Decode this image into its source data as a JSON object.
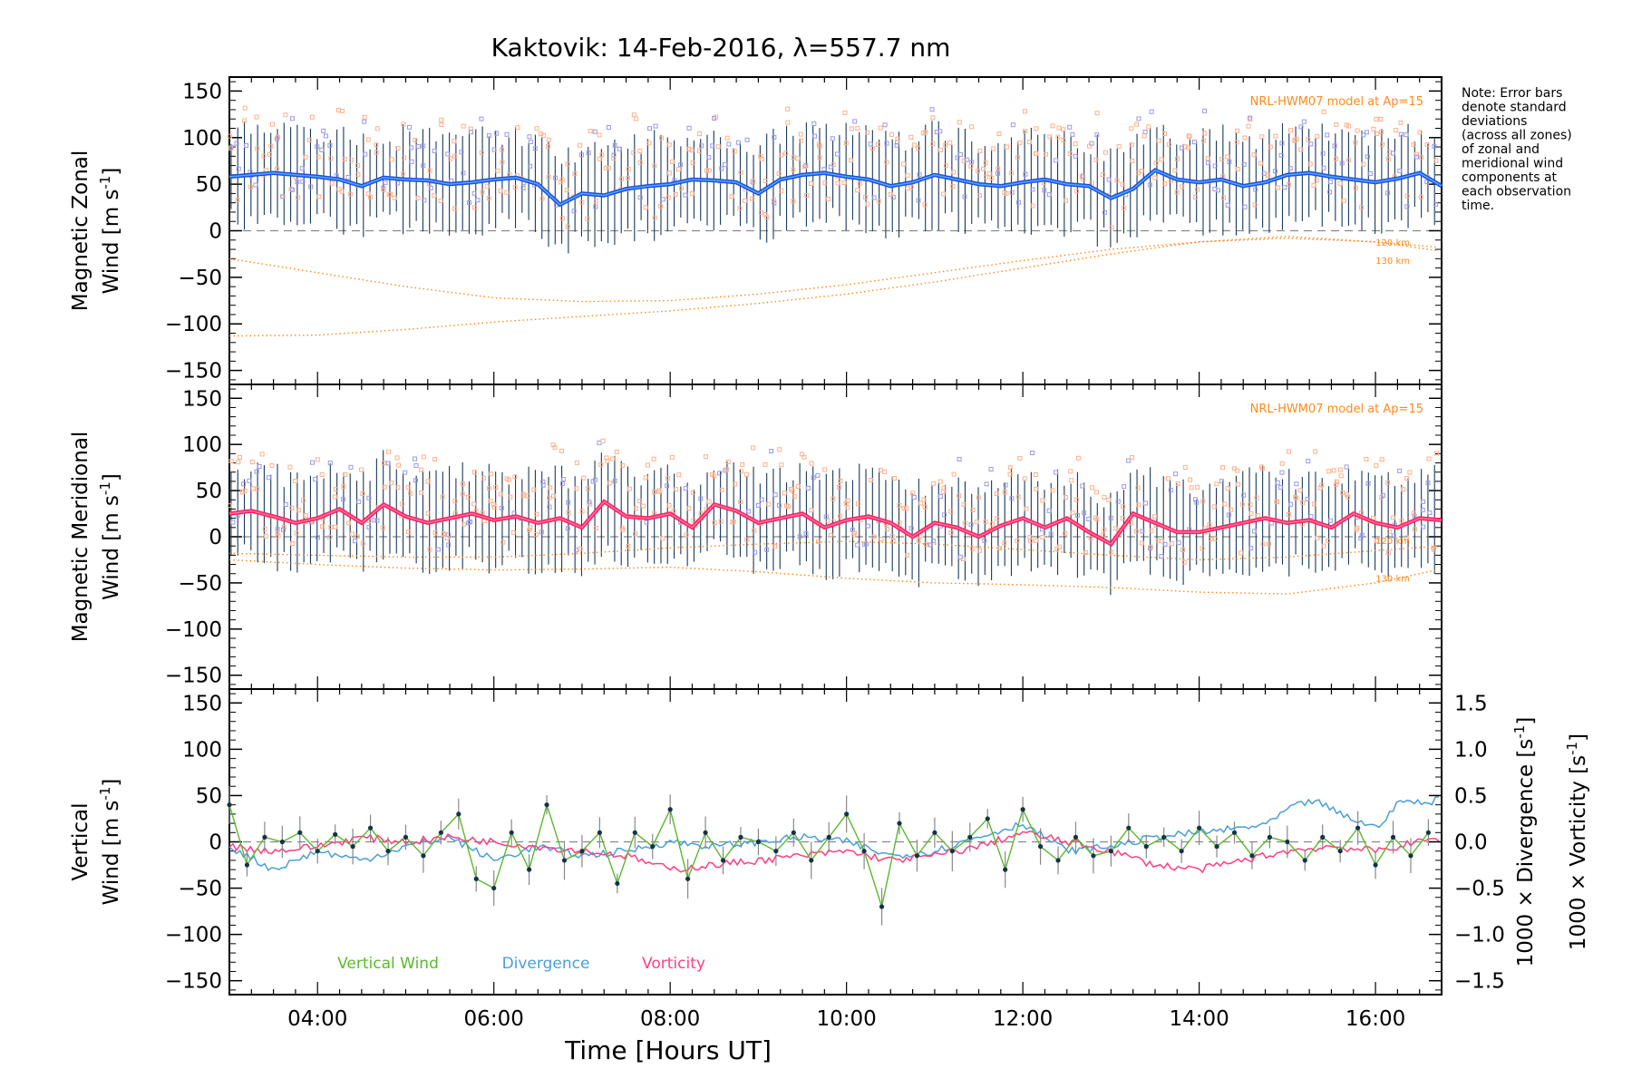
{
  "chart_data": {
    "type": "line",
    "title": "Kaktovik: 14-Feb-2016, λ=557.7 nm",
    "xlabel": "Time [Hours UT]",
    "xlim": [
      3.0,
      16.75
    ],
    "x_ticks": [
      "04:00",
      "06:00",
      "08:00",
      "10:00",
      "12:00",
      "14:00",
      "16:00"
    ],
    "x_tick_hours": [
      4,
      6,
      8,
      10,
      12,
      14,
      16
    ],
    "note": [
      "Note: Error bars",
      "denote standard",
      "deviations",
      "(across all zones)",
      "of zonal and",
      "meridional wind",
      "components at",
      "each observation",
      "time."
    ],
    "colors": {
      "zonal_mean": "#1f4fe0",
      "zonal_mean_light": "#4fa8ff",
      "meridional_mean": "#ff2060",
      "meridional_mean_light": "#ff70a0",
      "model": "#ff8a1c",
      "vertical": "#5cb82e",
      "divergence": "#4a9fd8",
      "vorticity": "#ff3f7f",
      "scatter_orange": "#ffb08a",
      "scatter_blue": "#9a9ae8"
    },
    "panels": [
      {
        "ylabel": [
          "Magnetic Zonal",
          "Wind [m s",
          "-1",
          "]"
        ],
        "ylim": [
          -165,
          165
        ],
        "y_ticks": [
          150,
          100,
          50,
          0,
          -50,
          -100,
          -150
        ],
        "model_label": "NRL-HWM07 model at Ap=15",
        "altitude_labels": [
          "120 km",
          "130 km"
        ],
        "series": [
          {
            "name": "mean",
            "x": [
              3.0,
              3.25,
              3.5,
              3.75,
              4.0,
              4.25,
              4.5,
              4.75,
              5.0,
              5.25,
              5.5,
              5.75,
              6.0,
              6.25,
              6.5,
              6.75,
              7.0,
              7.25,
              7.5,
              7.75,
              8.0,
              8.25,
              8.5,
              8.75,
              9.0,
              9.25,
              9.5,
              9.75,
              10.0,
              10.25,
              10.5,
              10.75,
              11.0,
              11.25,
              11.5,
              11.75,
              12.0,
              12.25,
              12.5,
              12.75,
              13.0,
              13.25,
              13.5,
              13.75,
              14.0,
              14.25,
              14.5,
              14.75,
              15.0,
              15.25,
              15.5,
              15.75,
              16.0,
              16.25,
              16.5,
              16.75
            ],
            "y": [
              58,
              60,
              62,
              60,
              58,
              55,
              48,
              57,
              55,
              54,
              50,
              52,
              55,
              57,
              50,
              28,
              40,
              38,
              45,
              48,
              50,
              55,
              54,
              52,
              40,
              55,
              60,
              62,
              58,
              55,
              48,
              52,
              60,
              55,
              50,
              48,
              52,
              55,
              50,
              48,
              35,
              45,
              65,
              55,
              52,
              55,
              48,
              52,
              60,
              62,
              58,
              55,
              52,
              56,
              62,
              48
            ]
          },
          {
            "name": "model 120 km",
            "x": [
              3.0,
              4.0,
              5.0,
              6.0,
              7.0,
              8.0,
              9.0,
              10.0,
              11.0,
              12.0,
              13.0,
              14.0,
              15.0,
              16.0,
              16.75
            ],
            "y": [
              -30,
              -45,
              -60,
              -72,
              -76,
              -75,
              -68,
              -58,
              -45,
              -32,
              -20,
              -12,
              -8,
              -12,
              -18
            ]
          },
          {
            "name": "model 130 km",
            "x": [
              3.0,
              4.0,
              5.0,
              6.0,
              7.0,
              8.0,
              9.0,
              10.0,
              11.0,
              12.0,
              13.0,
              14.0,
              15.0,
              16.0,
              16.75
            ],
            "y": [
              -113,
              -112,
              -106,
              -98,
              -92,
              -86,
              -78,
              -68,
              -55,
              -40,
              -25,
              -12,
              -6,
              -12,
              -22
            ]
          }
        ]
      },
      {
        "ylabel": [
          "Magnetic Meridional",
          "Wind [m s",
          "-1",
          "]"
        ],
        "ylim": [
          -165,
          165
        ],
        "y_ticks": [
          150,
          100,
          50,
          0,
          -50,
          -100,
          -150
        ],
        "model_label": "NRL-HWM07 model at Ap=15",
        "altitude_labels": [
          "120 km",
          "130 km"
        ],
        "series": [
          {
            "name": "mean",
            "x": [
              3.0,
              3.25,
              3.5,
              3.75,
              4.0,
              4.25,
              4.5,
              4.75,
              5.0,
              5.25,
              5.5,
              5.75,
              6.0,
              6.25,
              6.5,
              6.75,
              7.0,
              7.25,
              7.5,
              7.75,
              8.0,
              8.25,
              8.5,
              8.75,
              9.0,
              9.25,
              9.5,
              9.75,
              10.0,
              10.25,
              10.5,
              10.75,
              11.0,
              11.25,
              11.5,
              11.75,
              12.0,
              12.25,
              12.5,
              12.75,
              13.0,
              13.25,
              13.5,
              13.75,
              14.0,
              14.25,
              14.5,
              14.75,
              15.0,
              15.25,
              15.5,
              15.75,
              16.0,
              16.25,
              16.5,
              16.75
            ],
            "y": [
              25,
              28,
              22,
              15,
              20,
              30,
              15,
              35,
              22,
              15,
              20,
              25,
              18,
              22,
              15,
              20,
              10,
              38,
              22,
              20,
              25,
              10,
              35,
              28,
              15,
              20,
              25,
              10,
              18,
              22,
              15,
              0,
              15,
              10,
              0,
              12,
              20,
              10,
              20,
              5,
              -8,
              25,
              15,
              5,
              5,
              10,
              15,
              20,
              15,
              18,
              10,
              25,
              15,
              10,
              20,
              18
            ]
          },
          {
            "name": "model 120 km",
            "x": [
              3.0,
              4.0,
              5.0,
              6.0,
              7.0,
              8.0,
              9.0,
              10.0,
              11.0,
              12.0,
              13.0,
              14.0,
              15.0,
              16.0,
              16.75
            ],
            "y": [
              -18,
              -20,
              -22,
              -22,
              -18,
              -12,
              -8,
              -5,
              -8,
              -14,
              -20,
              -25,
              -22,
              -15,
              -10
            ]
          },
          {
            "name": "model 130 km",
            "x": [
              3.0,
              4.0,
              5.0,
              6.0,
              7.0,
              8.0,
              9.0,
              10.0,
              11.0,
              12.0,
              13.0,
              14.0,
              15.0,
              16.0,
              16.75
            ],
            "y": [
              -25,
              -30,
              -34,
              -36,
              -35,
              -33,
              -38,
              -45,
              -50,
              -52,
              -55,
              -60,
              -62,
              -50,
              -35
            ]
          }
        ]
      },
      {
        "ylabel": [
          "Vertical",
          "Wind [m s",
          "-1",
          "]"
        ],
        "ylim": [
          -165,
          165
        ],
        "y_ticks": [
          150,
          100,
          50,
          0,
          -50,
          -100,
          -150
        ],
        "right_ylim": [
          -1.65,
          1.65
        ],
        "right_ticks": [
          "1.5",
          "1.0",
          "0.5",
          "0.0",
          "−0.5",
          "−1.0",
          "−1.5"
        ],
        "right_tick_values": [
          1.5,
          1.0,
          0.5,
          0.0,
          -0.5,
          -1.0,
          -1.5
        ],
        "right_label_divergence": [
          "1000 × Divergence [s",
          "-1",
          "]"
        ],
        "right_label_vorticity": [
          "1000 × Vorticity [s",
          "-1",
          "]"
        ],
        "legend": [
          "Vertical Wind",
          "Divergence",
          "Vorticity"
        ],
        "series": [
          {
            "name": "Vertical Wind",
            "x": [
              3.0,
              3.2,
              3.4,
              3.6,
              3.8,
              4.0,
              4.2,
              4.4,
              4.6,
              4.8,
              5.0,
              5.2,
              5.4,
              5.6,
              5.8,
              6.0,
              6.2,
              6.4,
              6.6,
              6.8,
              7.0,
              7.2,
              7.4,
              7.6,
              7.8,
              8.0,
              8.2,
              8.4,
              8.6,
              8.8,
              9.0,
              9.2,
              9.4,
              9.6,
              9.8,
              10.0,
              10.2,
              10.4,
              10.6,
              10.8,
              11.0,
              11.2,
              11.4,
              11.6,
              11.8,
              12.0,
              12.2,
              12.4,
              12.6,
              12.8,
              13.0,
              13.2,
              13.4,
              13.6,
              13.8,
              14.0,
              14.2,
              14.4,
              14.6,
              14.8,
              15.0,
              15.2,
              15.4,
              15.6,
              15.8,
              16.0,
              16.2,
              16.4,
              16.6
            ],
            "y": [
              40,
              -25,
              5,
              0,
              10,
              -10,
              8,
              -5,
              15,
              -10,
              5,
              -15,
              10,
              30,
              -40,
              -50,
              10,
              -30,
              40,
              -20,
              -10,
              10,
              -45,
              10,
              -5,
              35,
              -40,
              10,
              -20,
              5,
              0,
              -10,
              10,
              -20,
              5,
              30,
              -10,
              -70,
              20,
              -15,
              10,
              -10,
              5,
              25,
              -30,
              35,
              -5,
              -20,
              5,
              -15,
              -10,
              15,
              -5,
              5,
              -10,
              15,
              -5,
              10,
              -15,
              5,
              0,
              -20,
              5,
              -10,
              15,
              -25,
              5,
              -15,
              10
            ]
          },
          {
            "name": "Divergence",
            "x": [
              3.0,
              3.5,
              4.0,
              4.5,
              5.0,
              5.5,
              6.0,
              6.5,
              7.0,
              7.5,
              8.0,
              8.5,
              9.0,
              9.5,
              10.0,
              10.5,
              11.0,
              11.5,
              12.0,
              12.5,
              13.0,
              13.5,
              14.0,
              14.5,
              14.8,
              15.0,
              15.3,
              15.6,
              16.0,
              16.3,
              16.6,
              16.75
            ],
            "y": [
              -0.05,
              -0.3,
              -0.1,
              -0.2,
              -0.05,
              0.05,
              -0.2,
              -0.05,
              -0.15,
              -0.1,
              0.0,
              -0.05,
              0.0,
              0.05,
              0.0,
              -0.15,
              -0.1,
              0.05,
              0.2,
              -0.1,
              -0.05,
              0.05,
              0.1,
              0.15,
              0.2,
              0.35,
              0.45,
              0.3,
              0.15,
              0.45,
              0.4,
              0.55
            ]
          },
          {
            "name": "Vorticity",
            "x": [
              3.0,
              3.5,
              4.0,
              4.5,
              5.0,
              5.5,
              6.0,
              6.5,
              7.0,
              7.5,
              8.0,
              8.5,
              9.0,
              9.5,
              10.0,
              10.5,
              11.0,
              11.5,
              12.0,
              12.5,
              13.0,
              13.5,
              14.0,
              14.5,
              15.0,
              15.5,
              16.0,
              16.5,
              16.75
            ],
            "y": [
              -0.05,
              -0.1,
              -0.05,
              0.05,
              0.0,
              0.05,
              0.0,
              -0.05,
              -0.1,
              -0.15,
              -0.3,
              -0.25,
              -0.2,
              -0.15,
              -0.1,
              -0.2,
              -0.15,
              -0.05,
              0.1,
              0.0,
              -0.1,
              -0.25,
              -0.3,
              -0.2,
              -0.1,
              -0.05,
              -0.1,
              0.0,
              0.05
            ]
          }
        ]
      }
    ]
  }
}
